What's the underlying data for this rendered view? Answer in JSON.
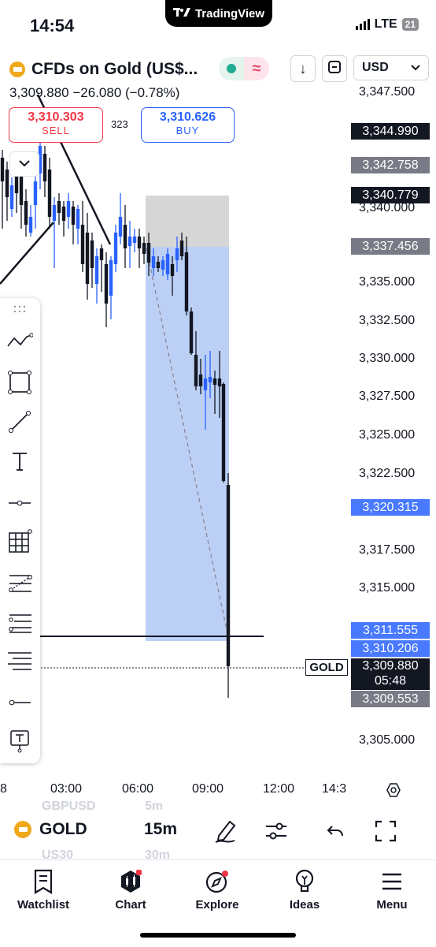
{
  "status_bar": {
    "time": "14:54",
    "app_pill": "TradingView",
    "network": "LTE",
    "battery": "21"
  },
  "header": {
    "symbol_title": "CFDs on Gold (US$...",
    "price_line": "3,309.880 −26.080 (−0.78%)",
    "currency": "USD",
    "currency_icon": "chevron-down-icon"
  },
  "trade": {
    "sell_price": "3,310.303",
    "sell_label": "SELL",
    "spread": "323",
    "buy_price": "3,310.626",
    "buy_label": "BUY"
  },
  "price_axis": {
    "labels": [
      "3,347.500",
      "3,340.000",
      "3,335.000",
      "3,332.500",
      "3,330.000",
      "3,327.500",
      "3,325.000",
      "3,322.500",
      "3,317.500",
      "3,315.000",
      "3,305.000"
    ],
    "badges": {
      "b1": "3,344.990",
      "b2": "3,342.758",
      "b3": "3,340.779",
      "b4": "3,337.456",
      "b5": "3,320.315",
      "b6": "3,311.555",
      "b7": "3,310.206",
      "b8": "3,309.553"
    },
    "current_price": "3,309.880",
    "countdown": "05:48",
    "symbol_tag": "GOLD"
  },
  "time_axis": [
    "8",
    "03:00",
    "06:00",
    "09:00",
    "12:00",
    "14:3"
  ],
  "bottom_bar": {
    "symbol": "GOLD",
    "interval": "15m",
    "ghost_symbol_above": "GBPUSD",
    "ghost_interval_above": "5m",
    "ghost_symbol_below": "US30",
    "ghost_interval_below": "30m"
  },
  "nav": [
    {
      "label": "Watchlist",
      "icon": "watchlist-icon"
    },
    {
      "label": "Chart",
      "icon": "chart-icon"
    },
    {
      "label": "Explore",
      "icon": "explore-icon"
    },
    {
      "label": "Ideas",
      "icon": "ideas-icon"
    },
    {
      "label": "Menu",
      "icon": "menu-icon"
    }
  ],
  "colors": {
    "up": "#2962ff",
    "down": "#131722",
    "sell": "#f23645",
    "buy": "#2962ff",
    "position_fill": "#bcd0f5",
    "gray_zone": "#d6d6d6"
  }
}
